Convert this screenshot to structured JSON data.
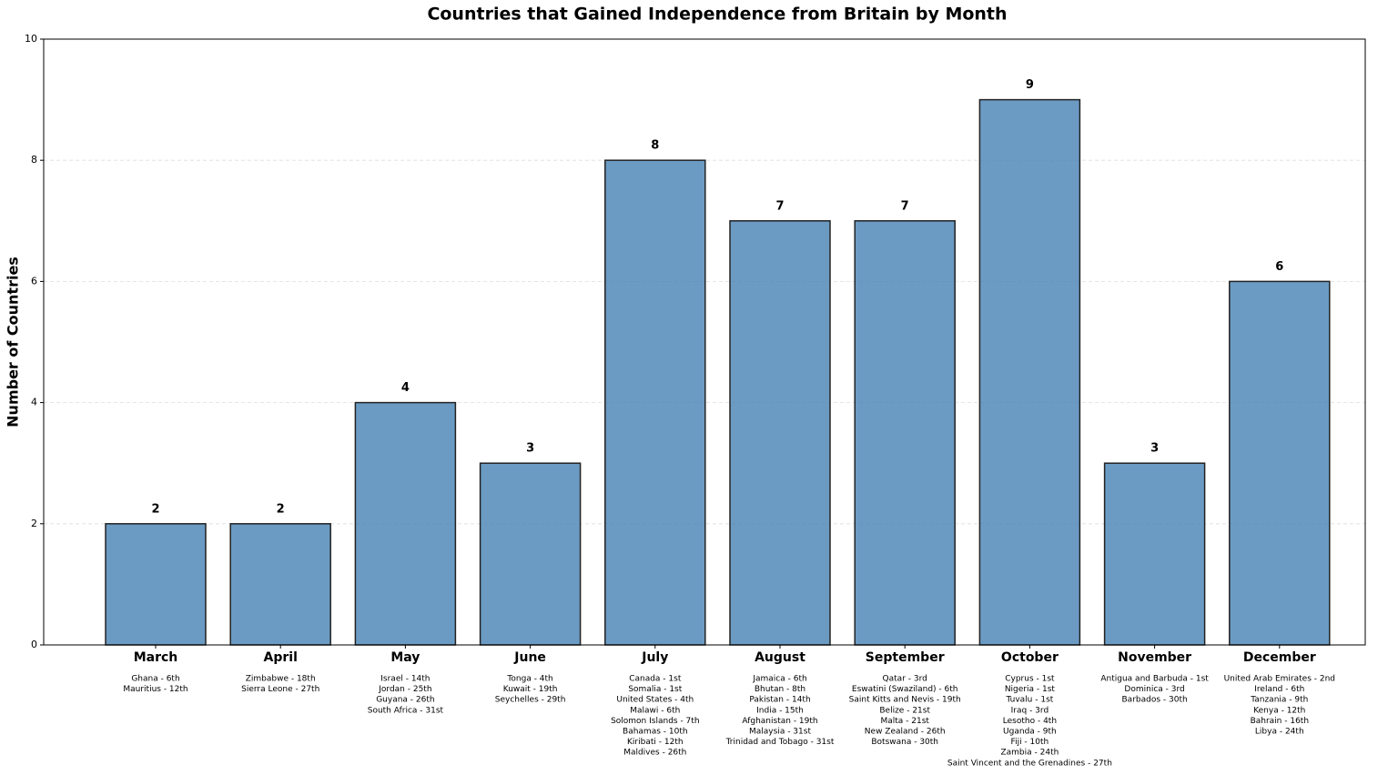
{
  "chart_data": {
    "type": "bar",
    "title": "Countries that Gained Independence from Britain by Month",
    "y_label": "Number of Countries",
    "categories": [
      "March",
      "April",
      "May",
      "June",
      "July",
      "August",
      "September",
      "October",
      "November",
      "December"
    ],
    "values": [
      2,
      2,
      4,
      3,
      8,
      7,
      7,
      9,
      3,
      6
    ],
    "color": "#4682b4",
    "ylim": [
      0,
      10
    ],
    "yticks": [
      0,
      2,
      4,
      6,
      8,
      10
    ],
    "grid": true,
    "country_lists": [
      [
        "Ghana - 6th",
        "Mauritius - 12th"
      ],
      [
        "Zimbabwe - 18th",
        "Sierra Leone - 27th"
      ],
      [
        "Israel - 14th",
        "Jordan - 25th",
        "Guyana - 26th",
        "South Africa - 31st"
      ],
      [
        "Tonga - 4th",
        "Kuwait - 19th",
        "Seychelles - 29th"
      ],
      [
        "Canada - 1st",
        "Somalia - 1st",
        "United States - 4th",
        "Malawi - 6th",
        "Solomon Islands - 7th",
        "Bahamas - 10th",
        "Kiribati - 12th",
        "Maldives - 26th"
      ],
      [
        "Jamaica - 6th",
        "Bhutan - 8th",
        "Pakistan - 14th",
        "India - 15th",
        "Afghanistan - 19th",
        "Malaysia - 31st",
        "Trinidad and Tobago - 31st"
      ],
      [
        "Qatar - 3rd",
        "Eswatini (Swaziland) - 6th",
        "Saint Kitts and Nevis - 19th",
        "Belize - 21st",
        "Malta - 21st",
        "New Zealand - 26th",
        "Botswana - 30th"
      ],
      [
        "Cyprus - 1st",
        "Nigeria - 1st",
        "Tuvalu - 1st",
        "Iraq - 3rd",
        "Lesotho - 4th",
        "Uganda - 9th",
        "Fiji - 10th",
        "Zambia - 24th",
        "Saint Vincent and the Grenadines - 27th"
      ],
      [
        "Antigua and Barbuda - 1st",
        "Dominica - 3rd",
        "Barbados - 30th"
      ],
      [
        "United Arab Emirates - 2nd",
        "Ireland - 6th",
        "Tanzania - 9th",
        "Kenya - 12th",
        "Bahrain - 16th",
        "Libya - 24th"
      ]
    ]
  }
}
